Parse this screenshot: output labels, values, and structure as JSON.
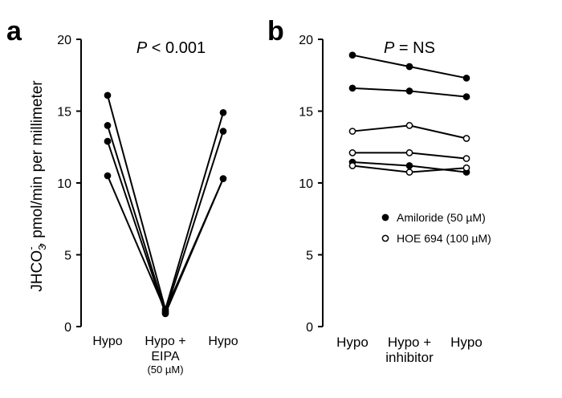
{
  "ylabel": {
    "main": "JHCO",
    "sub": "3",
    "sup": "-",
    "rest": ", pmol/min per millimeter"
  },
  "chart_data": [
    {
      "type": "line",
      "panel_label": "a",
      "annotation": "P < 0.001",
      "annotation_italic": "P",
      "annotation_rest": " < 0.001",
      "categories": [
        [
          "Hypo"
        ],
        [
          "Hypo +",
          "EIPA",
          "(50 µM)"
        ],
        [
          "Hypo"
        ]
      ],
      "ylim": [
        0,
        20
      ],
      "yticks": [
        0,
        5,
        10,
        15,
        20
      ],
      "series": [
        {
          "values": [
            16.1,
            1.2,
            14.9
          ],
          "marker": "filled"
        },
        {
          "values": [
            14.0,
            1.0,
            13.6
          ],
          "marker": "filled"
        },
        {
          "values": [
            12.9,
            0.9,
            10.3
          ],
          "marker": "filled"
        },
        {
          "values": [
            10.5,
            1.1,
            null
          ],
          "marker": "filled"
        }
      ]
    },
    {
      "type": "line",
      "panel_label": "b",
      "annotation": "P = NS",
      "annotation_italic": "P",
      "annotation_rest": " = NS",
      "categories": [
        [
          "Hypo"
        ],
        [
          "Hypo +",
          "inhibitor"
        ],
        [
          "Hypo"
        ]
      ],
      "ylim": [
        0,
        20
      ],
      "yticks": [
        0,
        5,
        10,
        15,
        20
      ],
      "legend": {
        "position": "right",
        "entries": [
          {
            "label": "Amiloride (50 µM)",
            "marker": "filled"
          },
          {
            "label": "HOE 694 (100 µM)",
            "marker": "open"
          }
        ]
      },
      "series": [
        {
          "values": [
            18.9,
            18.1,
            17.3
          ],
          "marker": "filled"
        },
        {
          "values": [
            16.6,
            16.4,
            16.0
          ],
          "marker": "filled"
        },
        {
          "values": [
            13.6,
            14.0,
            13.1
          ],
          "marker": "open"
        },
        {
          "values": [
            12.1,
            12.1,
            11.7
          ],
          "marker": "open"
        },
        {
          "values": [
            11.45,
            11.2,
            10.75
          ],
          "marker": "filled"
        },
        {
          "values": [
            11.2,
            10.75,
            11.05
          ],
          "marker": "open"
        }
      ]
    }
  ]
}
